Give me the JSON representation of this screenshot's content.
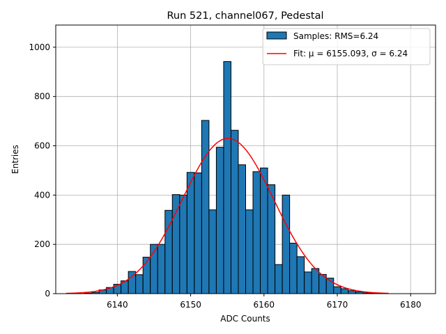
{
  "chart_data": {
    "type": "bar",
    "title": "Run 521, channel067, Pedestal",
    "xlabel": "ADC Counts",
    "ylabel": "Entries",
    "xlim": [
      6131.6,
      6183.4
    ],
    "ylim": [
      0,
      1090
    ],
    "grid": true,
    "xticks": [
      6140,
      6150,
      6160,
      6170,
      6180
    ],
    "yticks": [
      0,
      200,
      400,
      600,
      800,
      1000
    ],
    "bin_width": 1,
    "bins": [
      {
        "x": 6136,
        "count": 2
      },
      {
        "x": 6137,
        "count": 5
      },
      {
        "x": 6138,
        "count": 15
      },
      {
        "x": 6139,
        "count": 25
      },
      {
        "x": 6140,
        "count": 38
      },
      {
        "x": 6141,
        "count": 52
      },
      {
        "x": 6142,
        "count": 90
      },
      {
        "x": 6143,
        "count": 77
      },
      {
        "x": 6144,
        "count": 148
      },
      {
        "x": 6145,
        "count": 200
      },
      {
        "x": 6146,
        "count": 200
      },
      {
        "x": 6147,
        "count": 338
      },
      {
        "x": 6148,
        "count": 402
      },
      {
        "x": 6149,
        "count": 400
      },
      {
        "x": 6150,
        "count": 492
      },
      {
        "x": 6151,
        "count": 490
      },
      {
        "x": 6152,
        "count": 703
      },
      {
        "x": 6153,
        "count": 340
      },
      {
        "x": 6154,
        "count": 594
      },
      {
        "x": 6155,
        "count": 942
      },
      {
        "x": 6156,
        "count": 663
      },
      {
        "x": 6157,
        "count": 523
      },
      {
        "x": 6158,
        "count": 340
      },
      {
        "x": 6159,
        "count": 495
      },
      {
        "x": 6160,
        "count": 510
      },
      {
        "x": 6161,
        "count": 442
      },
      {
        "x": 6162,
        "count": 118
      },
      {
        "x": 6163,
        "count": 400
      },
      {
        "x": 6164,
        "count": 205
      },
      {
        "x": 6165,
        "count": 150
      },
      {
        "x": 6166,
        "count": 88
      },
      {
        "x": 6167,
        "count": 102
      },
      {
        "x": 6168,
        "count": 78
      },
      {
        "x": 6169,
        "count": 63
      },
      {
        "x": 6170,
        "count": 28
      },
      {
        "x": 6171,
        "count": 20
      },
      {
        "x": 6172,
        "count": 12
      },
      {
        "x": 6173,
        "count": 7
      },
      {
        "x": 6174,
        "count": 3
      },
      {
        "x": 6175,
        "count": 2
      }
    ],
    "fit": {
      "mu": 6155.093,
      "sigma": 6.24,
      "amplitude": 630,
      "x_range": [
        6133,
        6177
      ]
    },
    "legend": {
      "placement": "top-right",
      "entries": [
        {
          "label": "Samples: RMS=6.24",
          "kind": "patch"
        },
        {
          "label": "Fit: μ = 6155.093, σ = 6.24",
          "kind": "line"
        }
      ]
    },
    "colors": {
      "bar_fill": "#1f77b4",
      "bar_edge": "#000000",
      "fit_line": "#ff0000",
      "grid": "#b0b0b0"
    }
  }
}
